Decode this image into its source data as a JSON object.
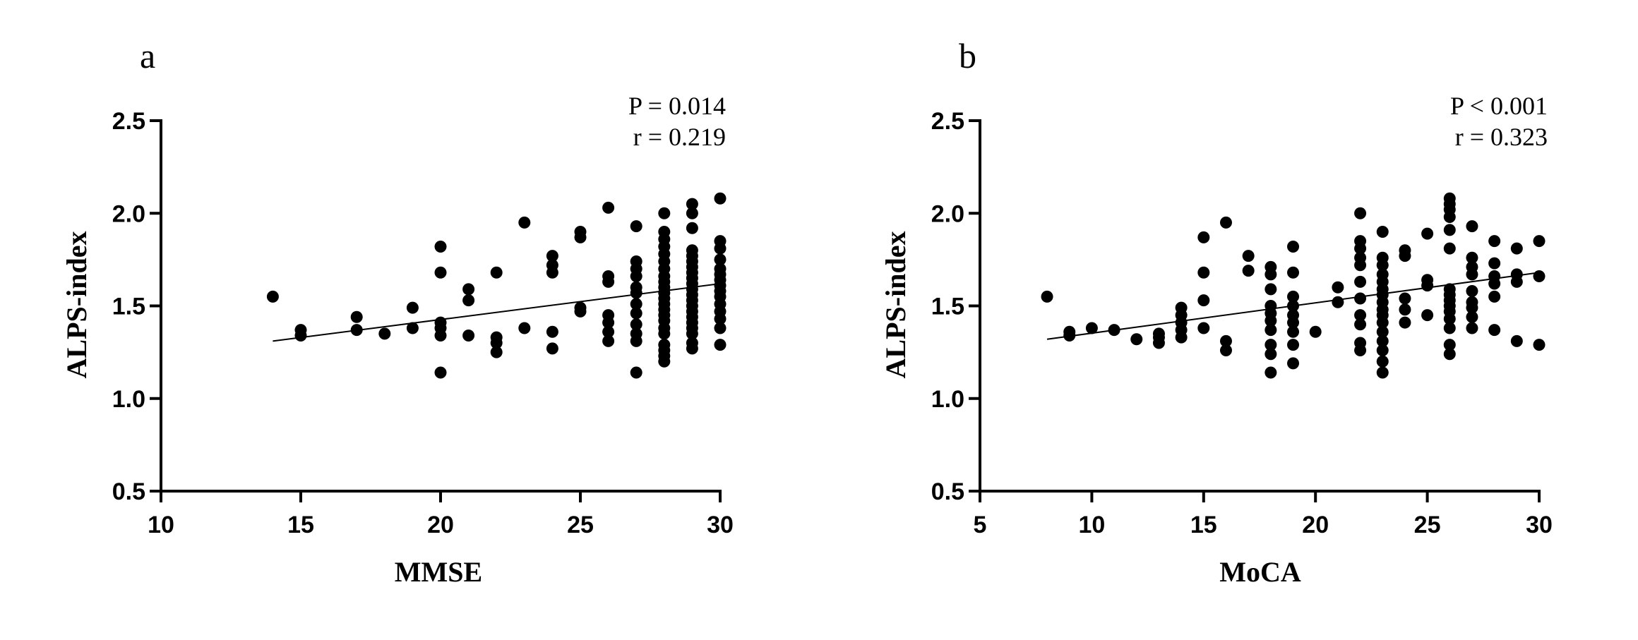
{
  "chart_data": [
    {
      "type": "scatter",
      "panel_label": "a",
      "xlabel": "MMSE",
      "ylabel": "ALPS-index",
      "xlim": [
        10,
        30
      ],
      "ylim": [
        0.5,
        2.5
      ],
      "xticks": [
        10,
        15,
        20,
        25,
        30
      ],
      "yticks": [
        0.5,
        1.0,
        1.5,
        2.0,
        2.5
      ],
      "xtick_labels": [
        "10",
        "15",
        "20",
        "25",
        "30"
      ],
      "ytick_labels": [
        "0.5",
        "1.0",
        "1.5",
        "2.0",
        "2.5"
      ],
      "annotations": [
        "P = 0.014",
        "r = 0.219"
      ],
      "fit_line": {
        "x": [
          14,
          30
        ],
        "y": [
          1.31,
          1.62
        ]
      },
      "points": [
        [
          14,
          1.55
        ],
        [
          15,
          1.37
        ],
        [
          15,
          1.34
        ],
        [
          17,
          1.44
        ],
        [
          17,
          1.37
        ],
        [
          18,
          1.35
        ],
        [
          19,
          1.49
        ],
        [
          19,
          1.38
        ],
        [
          20,
          1.82
        ],
        [
          20,
          1.68
        ],
        [
          20,
          1.41
        ],
        [
          20,
          1.38
        ],
        [
          20,
          1.34
        ],
        [
          20,
          1.14
        ],
        [
          21,
          1.59
        ],
        [
          21,
          1.53
        ],
        [
          21,
          1.34
        ],
        [
          22,
          1.68
        ],
        [
          22,
          1.33
        ],
        [
          22,
          1.3
        ],
        [
          22,
          1.25
        ],
        [
          23,
          1.95
        ],
        [
          23,
          1.38
        ],
        [
          24,
          1.77
        ],
        [
          24,
          1.72
        ],
        [
          24,
          1.68
        ],
        [
          24,
          1.36
        ],
        [
          24,
          1.27
        ],
        [
          25,
          1.9
        ],
        [
          25,
          1.87
        ],
        [
          25,
          1.49
        ],
        [
          25,
          1.47
        ],
        [
          26,
          2.03
        ],
        [
          26,
          1.66
        ],
        [
          26,
          1.63
        ],
        [
          26,
          1.45
        ],
        [
          26,
          1.41
        ],
        [
          26,
          1.36
        ],
        [
          26,
          1.31
        ],
        [
          27,
          1.93
        ],
        [
          27,
          1.74
        ],
        [
          27,
          1.7
        ],
        [
          27,
          1.66
        ],
        [
          27,
          1.6
        ],
        [
          27,
          1.57
        ],
        [
          27,
          1.51
        ],
        [
          27,
          1.46
        ],
        [
          27,
          1.4
        ],
        [
          27,
          1.35
        ],
        [
          27,
          1.31
        ],
        [
          27,
          1.14
        ],
        [
          28,
          2.0
        ],
        [
          28,
          1.9
        ],
        [
          28,
          1.86
        ],
        [
          28,
          1.82
        ],
        [
          28,
          1.78
        ],
        [
          28,
          1.74
        ],
        [
          28,
          1.7
        ],
        [
          28,
          1.66
        ],
        [
          28,
          1.63
        ],
        [
          28,
          1.6
        ],
        [
          28,
          1.57
        ],
        [
          28,
          1.54
        ],
        [
          28,
          1.51
        ],
        [
          28,
          1.48
        ],
        [
          28,
          1.45
        ],
        [
          28,
          1.42
        ],
        [
          28,
          1.38
        ],
        [
          28,
          1.35
        ],
        [
          28,
          1.29
        ],
        [
          28,
          1.26
        ],
        [
          28,
          1.23
        ],
        [
          28,
          1.2
        ],
        [
          29,
          2.05
        ],
        [
          29,
          2.0
        ],
        [
          29,
          1.92
        ],
        [
          29,
          1.8
        ],
        [
          29,
          1.77
        ],
        [
          29,
          1.74
        ],
        [
          29,
          1.71
        ],
        [
          29,
          1.68
        ],
        [
          29,
          1.65
        ],
        [
          29,
          1.62
        ],
        [
          29,
          1.59
        ],
        [
          29,
          1.56
        ],
        [
          29,
          1.53
        ],
        [
          29,
          1.5
        ],
        [
          29,
          1.47
        ],
        [
          29,
          1.44
        ],
        [
          29,
          1.41
        ],
        [
          29,
          1.38
        ],
        [
          29,
          1.35
        ],
        [
          29,
          1.3
        ],
        [
          29,
          1.27
        ],
        [
          30,
          2.08
        ],
        [
          30,
          1.85
        ],
        [
          30,
          1.81
        ],
        [
          30,
          1.75
        ],
        [
          30,
          1.7
        ],
        [
          30,
          1.67
        ],
        [
          30,
          1.64
        ],
        [
          30,
          1.61
        ],
        [
          30,
          1.58
        ],
        [
          30,
          1.55
        ],
        [
          30,
          1.51
        ],
        [
          30,
          1.47
        ],
        [
          30,
          1.43
        ],
        [
          30,
          1.38
        ],
        [
          30,
          1.29
        ]
      ]
    },
    {
      "type": "scatter",
      "panel_label": "b",
      "xlabel": "MoCA",
      "ylabel": "ALPS-index",
      "xlim": [
        5,
        30
      ],
      "ylim": [
        0.5,
        2.5
      ],
      "xticks": [
        5,
        10,
        15,
        20,
        25,
        30
      ],
      "yticks": [
        0.5,
        1.0,
        1.5,
        2.0,
        2.5
      ],
      "xtick_labels": [
        "5",
        "10",
        "15",
        "20",
        "25",
        "30"
      ],
      "ytick_labels": [
        "0.5",
        "1.0",
        "1.5",
        "2.0",
        "2.5"
      ],
      "annotations": [
        "P < 0.001",
        "r = 0.323"
      ],
      "fit_line": {
        "x": [
          8,
          30
        ],
        "y": [
          1.32,
          1.68
        ]
      },
      "points": [
        [
          8,
          1.55
        ],
        [
          9,
          1.36
        ],
        [
          9,
          1.34
        ],
        [
          10,
          1.38
        ],
        [
          11,
          1.37
        ],
        [
          12,
          1.32
        ],
        [
          13,
          1.35
        ],
        [
          13,
          1.33
        ],
        [
          13,
          1.3
        ],
        [
          14,
          1.49
        ],
        [
          14,
          1.45
        ],
        [
          14,
          1.41
        ],
        [
          14,
          1.37
        ],
        [
          14,
          1.33
        ],
        [
          15,
          1.87
        ],
        [
          15,
          1.68
        ],
        [
          15,
          1.53
        ],
        [
          15,
          1.38
        ],
        [
          16,
          1.95
        ],
        [
          16,
          1.31
        ],
        [
          16,
          1.26
        ],
        [
          17,
          1.77
        ],
        [
          17,
          1.69
        ],
        [
          18,
          1.71
        ],
        [
          18,
          1.67
        ],
        [
          18,
          1.59
        ],
        [
          18,
          1.5
        ],
        [
          18,
          1.46
        ],
        [
          18,
          1.42
        ],
        [
          18,
          1.37
        ],
        [
          18,
          1.29
        ],
        [
          18,
          1.24
        ],
        [
          18,
          1.14
        ],
        [
          19,
          1.82
        ],
        [
          19,
          1.68
        ],
        [
          19,
          1.55
        ],
        [
          19,
          1.5
        ],
        [
          19,
          1.45
        ],
        [
          19,
          1.41
        ],
        [
          19,
          1.36
        ],
        [
          19,
          1.29
        ],
        [
          19,
          1.19
        ],
        [
          20,
          1.36
        ],
        [
          21,
          1.6
        ],
        [
          21,
          1.52
        ],
        [
          22,
          2.0
        ],
        [
          22,
          1.85
        ],
        [
          22,
          1.81
        ],
        [
          22,
          1.76
        ],
        [
          22,
          1.72
        ],
        [
          22,
          1.63
        ],
        [
          22,
          1.54
        ],
        [
          22,
          1.45
        ],
        [
          22,
          1.4
        ],
        [
          22,
          1.3
        ],
        [
          22,
          1.26
        ],
        [
          23,
          1.9
        ],
        [
          23,
          1.76
        ],
        [
          23,
          1.72
        ],
        [
          23,
          1.67
        ],
        [
          23,
          1.63
        ],
        [
          23,
          1.59
        ],
        [
          23,
          1.56
        ],
        [
          23,
          1.52
        ],
        [
          23,
          1.48
        ],
        [
          23,
          1.45
        ],
        [
          23,
          1.41
        ],
        [
          23,
          1.36
        ],
        [
          23,
          1.31
        ],
        [
          23,
          1.26
        ],
        [
          23,
          1.2
        ],
        [
          23,
          1.14
        ],
        [
          24,
          1.8
        ],
        [
          24,
          1.77
        ],
        [
          24,
          1.54
        ],
        [
          24,
          1.48
        ],
        [
          24,
          1.41
        ],
        [
          25,
          1.89
        ],
        [
          25,
          1.64
        ],
        [
          25,
          1.61
        ],
        [
          25,
          1.45
        ],
        [
          26,
          2.08
        ],
        [
          26,
          2.05
        ],
        [
          26,
          2.02
        ],
        [
          26,
          1.98
        ],
        [
          26,
          1.91
        ],
        [
          26,
          1.81
        ],
        [
          26,
          1.59
        ],
        [
          26,
          1.56
        ],
        [
          26,
          1.53
        ],
        [
          26,
          1.5
        ],
        [
          26,
          1.47
        ],
        [
          26,
          1.43
        ],
        [
          26,
          1.38
        ],
        [
          26,
          1.29
        ],
        [
          26,
          1.24
        ],
        [
          27,
          1.93
        ],
        [
          27,
          1.76
        ],
        [
          27,
          1.71
        ],
        [
          27,
          1.67
        ],
        [
          27,
          1.58
        ],
        [
          27,
          1.52
        ],
        [
          27,
          1.49
        ],
        [
          27,
          1.44
        ],
        [
          27,
          1.38
        ],
        [
          28,
          1.85
        ],
        [
          28,
          1.73
        ],
        [
          28,
          1.66
        ],
        [
          28,
          1.62
        ],
        [
          28,
          1.55
        ],
        [
          28,
          1.37
        ],
        [
          29,
          1.81
        ],
        [
          29,
          1.67
        ],
        [
          29,
          1.63
        ],
        [
          29,
          1.31
        ],
        [
          30,
          1.85
        ],
        [
          30,
          1.66
        ],
        [
          30,
          1.29
        ]
      ]
    }
  ]
}
